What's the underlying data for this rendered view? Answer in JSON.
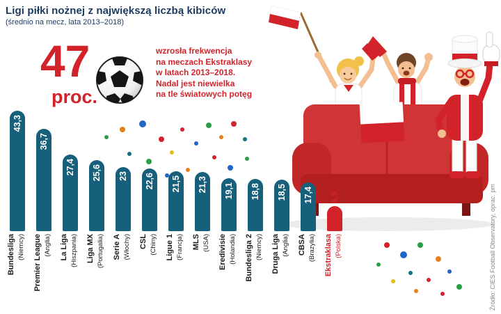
{
  "header": {
    "title": "Ligi piłki nożnej z największą liczbą kibiców",
    "subtitle": "(średnio na mecz, lata 2013–2018)"
  },
  "highlight": {
    "number": "47",
    "unit": "proc.",
    "note_lines": [
      "wzrosła frekwencja",
      "na meczach  Ekstraklasy",
      "w latach 2013–2018.",
      "Nadal jest niewielka",
      "na tle światowych potęg"
    ]
  },
  "icons": {
    "soccer_ball": "soccer-ball-icon",
    "confetti": "confetti-dots"
  },
  "chart_data": {
    "type": "bar",
    "title": "Ligi piłki nożnej z największą liczbą kibiców",
    "subtitle": "(średnio na mecz, lata 2013–2018)",
    "bar_color": "#17607c",
    "highlight_color": "#d2232a",
    "ylim": [
      0,
      45
    ],
    "grid": false,
    "legend": false,
    "bars": [
      {
        "league": "Bundesliga",
        "country": "(Niemcy)",
        "value": 43.3,
        "display": "43,3",
        "highlight": false
      },
      {
        "league": "Premier League",
        "country": "(Anglia)",
        "value": 36.7,
        "display": "36,7",
        "highlight": false
      },
      {
        "league": "La Liga",
        "country": "(Hiszpania)",
        "value": 27.4,
        "display": "27,4",
        "highlight": false
      },
      {
        "league": "Liga MX",
        "country": "(Portugalia)",
        "value": 25.6,
        "display": "25,6",
        "highlight": false
      },
      {
        "league": "Serie A",
        "country": "(Włochy)",
        "value": 23,
        "display": "23",
        "highlight": false
      },
      {
        "league": "CSL",
        "country": "(Chiny)",
        "value": 22.6,
        "display": "22,6",
        "highlight": false
      },
      {
        "league": "Ligue 1",
        "country": "(Francja)",
        "value": 21.5,
        "display": "21,5",
        "highlight": false
      },
      {
        "league": "MLS",
        "country": "(USA)",
        "value": 21.3,
        "display": "21,3",
        "highlight": false
      },
      {
        "league": "Eredivisie",
        "country": "(Holandia)",
        "value": 19.1,
        "display": "19,1",
        "highlight": false
      },
      {
        "league": "Bundesliga 2",
        "country": "(Niemcy)",
        "value": 18.8,
        "display": "18,8",
        "highlight": false
      },
      {
        "league": "Druga Liga",
        "country": "(Anglia)",
        "value": 18.5,
        "display": "18,5",
        "highlight": false
      },
      {
        "league": "CBSA",
        "country": "(Brazylia)",
        "value": 17.4,
        "display": "17,4",
        "highlight": false
      },
      {
        "league": "Ekstraklasa",
        "country": "(Polska)",
        "value": 8.9,
        "display": "8,9",
        "highlight": true
      }
    ]
  },
  "source": "Źródło: CIES Football Observatory, oprac. pm",
  "colors": {
    "accent_red": "#d2232a",
    "bar_teal": "#17607c",
    "title_navy": "#1b3a5f"
  }
}
